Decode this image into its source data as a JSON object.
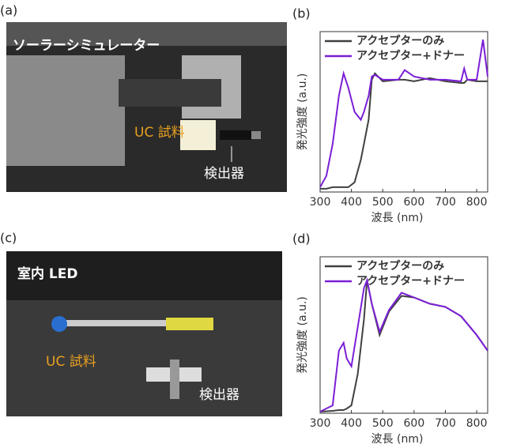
{
  "photos": [
    {
      "label": "(a)",
      "title": "ソーラーシミュレーター",
      "sample": "UC 試料",
      "detector": "検出器"
    },
    {
      "label": "(c)",
      "title": "室内 LED",
      "sample": "UC 試料",
      "detector": "検出器"
    }
  ],
  "chart_data": [
    {
      "type": "line",
      "panel_label": "(b)",
      "xlabel": "波長 (nm)",
      "ylabel": "発光強度 (a.u.)",
      "legend": "upper left",
      "xlim": [
        300,
        835
      ],
      "ylim": [
        0,
        1
      ],
      "xticks": [
        300,
        400,
        500,
        600,
        700,
        800
      ],
      "x": [
        300,
        320,
        340,
        360,
        375,
        390,
        410,
        430,
        440,
        455,
        465,
        475,
        500,
        550,
        570,
        600,
        650,
        700,
        750,
        760,
        770,
        800,
        820,
        835
      ],
      "series": [
        {
          "name": "アクセプターのみ",
          "color": "#404040",
          "values": [
            0.02,
            0.02,
            0.03,
            0.03,
            0.03,
            0.03,
            0.06,
            0.2,
            0.3,
            0.45,
            0.7,
            0.74,
            0.69,
            0.7,
            0.7,
            0.69,
            0.71,
            0.69,
            0.68,
            0.68,
            0.7,
            0.69,
            0.69,
            0.69
          ]
        },
        {
          "name": "アクセプター+ドナー",
          "color": "#7b1fd6",
          "values": [
            0.03,
            0.1,
            0.3,
            0.6,
            0.74,
            0.65,
            0.5,
            0.45,
            0.5,
            0.6,
            0.72,
            0.73,
            0.7,
            0.7,
            0.76,
            0.72,
            0.7,
            0.7,
            0.69,
            0.77,
            0.7,
            0.7,
            0.95,
            0.72
          ]
        }
      ]
    },
    {
      "type": "line",
      "panel_label": "(d)",
      "xlabel": "波長 (nm)",
      "ylabel": "発光強度 (a.u.)",
      "legend": "upper left",
      "xlim": [
        300,
        835
      ],
      "ylim": [
        0,
        1
      ],
      "xticks": [
        300,
        400,
        500,
        600,
        700,
        800
      ],
      "x": [
        300,
        340,
        360,
        375,
        385,
        400,
        420,
        440,
        450,
        465,
        490,
        520,
        560,
        600,
        650,
        700,
        750,
        800,
        835
      ],
      "series": [
        {
          "name": "アクセプターのみ",
          "color": "#404040",
          "values": [
            0.01,
            0.015,
            0.02,
            0.02,
            0.03,
            0.05,
            0.25,
            0.6,
            0.85,
            0.7,
            0.5,
            0.65,
            0.75,
            0.74,
            0.7,
            0.68,
            0.62,
            0.5,
            0.4
          ]
        },
        {
          "name": "アクセプター+ドナー",
          "color": "#7b1fd6",
          "values": [
            0.01,
            0.05,
            0.4,
            0.45,
            0.35,
            0.3,
            0.55,
            0.8,
            0.85,
            0.7,
            0.52,
            0.66,
            0.77,
            0.74,
            0.7,
            0.68,
            0.62,
            0.5,
            0.4
          ]
        }
      ]
    }
  ]
}
